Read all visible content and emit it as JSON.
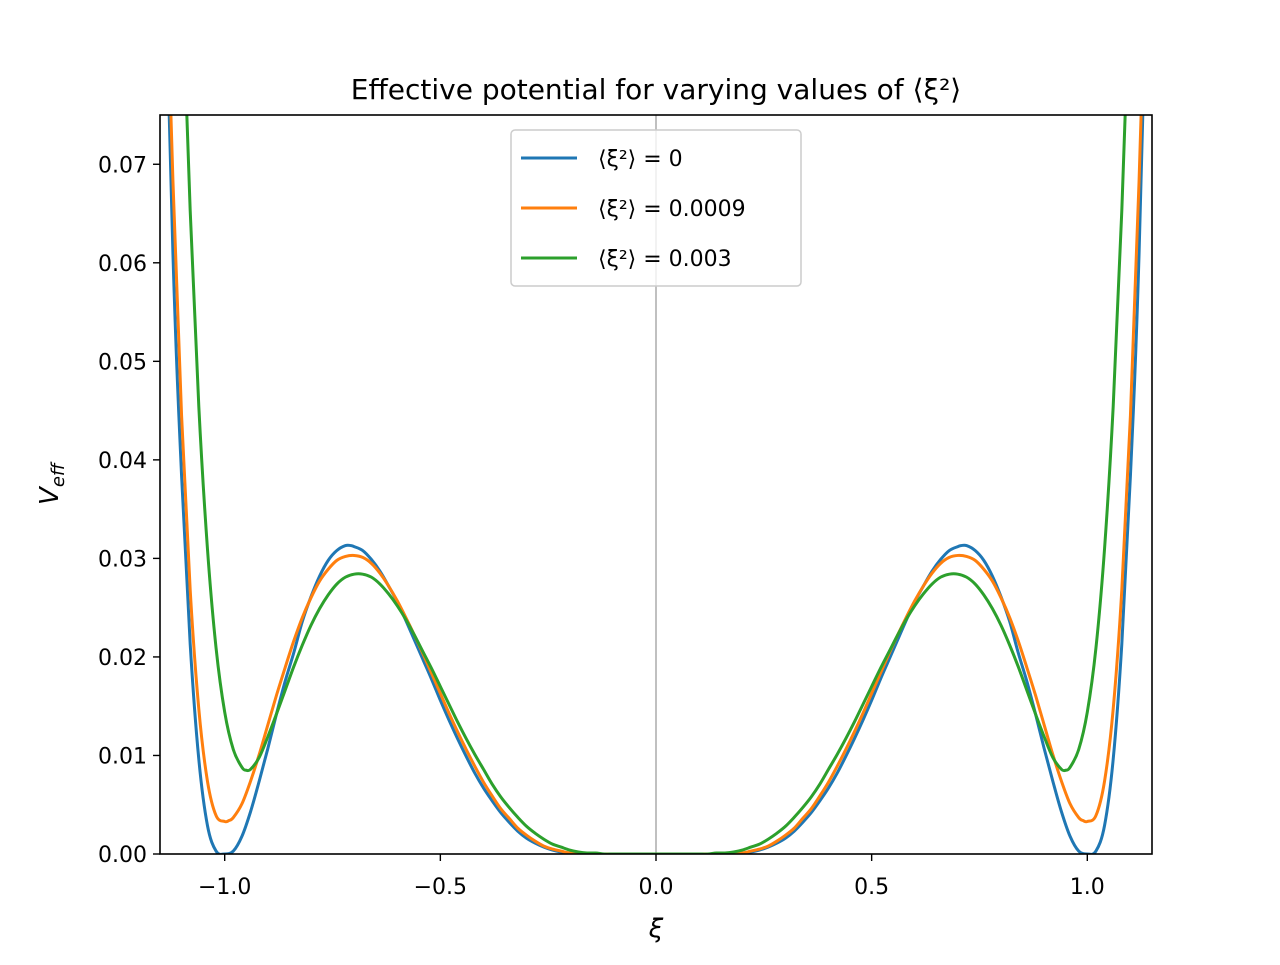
{
  "chart_data": {
    "type": "line",
    "title": "Effective potential for varying values of ⟨ξ²⟩",
    "xlabel": "ξ",
    "ylabel_main": "V",
    "ylabel_sub": "eff",
    "xlim": [
      -1.15,
      1.15
    ],
    "ylim": [
      0.0,
      0.075
    ],
    "xticks": [
      -1.0,
      -0.5,
      0.0,
      0.5,
      1.0
    ],
    "xtick_labels": [
      "−1.0",
      "−0.5",
      "0.0",
      "0.5",
      "1.0"
    ],
    "yticks": [
      0.0,
      0.01,
      0.02,
      0.03,
      0.04,
      0.05,
      0.06,
      0.07
    ],
    "ytick_labels": [
      "0.00",
      "0.01",
      "0.02",
      "0.03",
      "0.04",
      "0.05",
      "0.06",
      "0.07"
    ],
    "grid": false,
    "vertical_reference_line": 0.0,
    "legend_position": "upper center",
    "series": [
      {
        "name": "⟨ξ²⟩ = 0",
        "color": "#1f77b4",
        "x": [
          -1.15,
          -1.12,
          -1.1,
          -1.08,
          -1.06,
          -1.04,
          -1.02,
          -1.0,
          -0.98,
          -0.96,
          -0.94,
          -0.92,
          -0.9,
          -0.88,
          -0.86,
          -0.84,
          -0.82,
          -0.8,
          -0.78,
          -0.76,
          -0.74,
          -0.72,
          -0.707,
          -0.7,
          -0.68,
          -0.66,
          -0.64,
          -0.62,
          -0.6,
          -0.58,
          -0.56,
          -0.54,
          -0.52,
          -0.5,
          -0.48,
          -0.46,
          -0.44,
          -0.42,
          -0.4,
          -0.38,
          -0.36,
          -0.34,
          -0.32,
          -0.3,
          -0.28,
          -0.26,
          -0.24,
          -0.22,
          -0.2,
          -0.18,
          -0.16,
          -0.14,
          -0.12,
          -0.1,
          -0.08,
          -0.06,
          -0.04,
          -0.02,
          0.0,
          0.02,
          0.04,
          0.06,
          0.08,
          0.1,
          0.12,
          0.14,
          0.16,
          0.18,
          0.2,
          0.22,
          0.24,
          0.26,
          0.28,
          0.3,
          0.32,
          0.34,
          0.36,
          0.38,
          0.4,
          0.42,
          0.44,
          0.46,
          0.48,
          0.5,
          0.52,
          0.54,
          0.56,
          0.58,
          0.6,
          0.62,
          0.64,
          0.66,
          0.68,
          0.7,
          0.707,
          0.72,
          0.74,
          0.76,
          0.78,
          0.8,
          0.82,
          0.84,
          0.86,
          0.88,
          0.9,
          0.92,
          0.94,
          0.96,
          0.98,
          1.0,
          1.02,
          1.04,
          1.06,
          1.08,
          1.1,
          1.12,
          1.15
        ],
        "y": [
          0.1114,
          0.0609,
          0.0384,
          0.0213,
          0.0096,
          0.0029,
          0.0003,
          0.0,
          0.0003,
          0.0018,
          0.0043,
          0.0074,
          0.0107,
          0.0142,
          0.0175,
          0.0204,
          0.0236,
          0.0261,
          0.0282,
          0.0298,
          0.0308,
          0.0313,
          0.0313,
          0.0312,
          0.0308,
          0.0299,
          0.0287,
          0.0272,
          0.0256,
          0.0237,
          0.0217,
          0.0197,
          0.0177,
          0.0156,
          0.0136,
          0.0117,
          0.0099,
          0.0082,
          0.0067,
          0.0054,
          0.0042,
          0.0032,
          0.0023,
          0.0016,
          0.0011,
          0.0007,
          0.0004,
          0.0002,
          0.0001,
          0.0,
          0.0,
          0.0,
          0.0,
          0.0,
          0.0,
          0.0,
          0.0,
          0.0,
          0.0,
          0.0,
          0.0,
          0.0,
          0.0,
          0.0,
          0.0,
          0.0,
          0.0,
          0.0,
          0.0001,
          0.0002,
          0.0004,
          0.0007,
          0.0011,
          0.0016,
          0.0023,
          0.0032,
          0.0042,
          0.0054,
          0.0067,
          0.0082,
          0.0099,
          0.0117,
          0.0136,
          0.0156,
          0.0177,
          0.0197,
          0.0217,
          0.0237,
          0.0256,
          0.0272,
          0.0287,
          0.0299,
          0.0308,
          0.0312,
          0.0313,
          0.0313,
          0.0308,
          0.0298,
          0.0282,
          0.0261,
          0.0236,
          0.0204,
          0.0175,
          0.0142,
          0.0107,
          0.0074,
          0.0043,
          0.0018,
          0.0003,
          0.0,
          0.0003,
          0.0029,
          0.0096,
          0.0213,
          0.0384,
          0.0609,
          0.1114
        ]
      },
      {
        "name": "⟨ξ²⟩ = 0.0009",
        "color": "#ff7f0e",
        "x": [
          -1.14,
          -1.12,
          -1.1,
          -1.08,
          -1.06,
          -1.04,
          -1.02,
          -1.0,
          -0.99,
          -0.98,
          -0.96,
          -0.94,
          -0.92,
          -0.9,
          -0.88,
          -0.86,
          -0.84,
          -0.82,
          -0.8,
          -0.78,
          -0.76,
          -0.74,
          -0.72,
          -0.7,
          -0.68,
          -0.66,
          -0.64,
          -0.62,
          -0.6,
          -0.58,
          -0.56,
          -0.54,
          -0.52,
          -0.5,
          -0.48,
          -0.46,
          -0.44,
          -0.42,
          -0.4,
          -0.38,
          -0.36,
          -0.34,
          -0.32,
          -0.3,
          -0.28,
          -0.26,
          -0.24,
          -0.22,
          -0.2,
          -0.18,
          -0.16,
          -0.14,
          -0.12,
          -0.1,
          -0.08,
          -0.06,
          -0.04,
          -0.02,
          0.0,
          0.02,
          0.04,
          0.06,
          0.08,
          0.1,
          0.12,
          0.14,
          0.16,
          0.18,
          0.2,
          0.22,
          0.24,
          0.26,
          0.28,
          0.3,
          0.32,
          0.34,
          0.36,
          0.38,
          0.4,
          0.42,
          0.44,
          0.46,
          0.48,
          0.5,
          0.52,
          0.54,
          0.56,
          0.58,
          0.6,
          0.62,
          0.64,
          0.66,
          0.68,
          0.7,
          0.72,
          0.74,
          0.76,
          0.78,
          0.8,
          0.82,
          0.84,
          0.86,
          0.88,
          0.9,
          0.92,
          0.94,
          0.96,
          0.98,
          0.99,
          1.0,
          1.02,
          1.04,
          1.06,
          1.08,
          1.1,
          1.12,
          1.14
        ],
        "y": [
          0.0977,
          0.0683,
          0.0445,
          0.0268,
          0.0147,
          0.0074,
          0.0039,
          0.0033,
          0.0034,
          0.0037,
          0.0051,
          0.0074,
          0.0101,
          0.0131,
          0.0161,
          0.0189,
          0.0216,
          0.024,
          0.026,
          0.0277,
          0.0289,
          0.0298,
          0.0302,
          0.0303,
          0.0301,
          0.0295,
          0.0285,
          0.0272,
          0.0257,
          0.024,
          0.0222,
          0.0203,
          0.0183,
          0.0163,
          0.0143,
          0.0124,
          0.0106,
          0.0089,
          0.0073,
          0.0059,
          0.0046,
          0.0036,
          0.0026,
          0.0019,
          0.0013,
          0.0008,
          0.0005,
          0.0003,
          0.0001,
          0.0001,
          0.0,
          0.0,
          0.0,
          0.0,
          0.0,
          0.0,
          0.0,
          0.0,
          0.0,
          0.0,
          0.0,
          0.0,
          0.0,
          0.0,
          0.0,
          0.0,
          0.0,
          0.0001,
          0.0001,
          0.0003,
          0.0005,
          0.0008,
          0.0013,
          0.0019,
          0.0026,
          0.0036,
          0.0046,
          0.0059,
          0.0073,
          0.0089,
          0.0106,
          0.0124,
          0.0143,
          0.0163,
          0.0183,
          0.0203,
          0.0222,
          0.024,
          0.0257,
          0.0272,
          0.0285,
          0.0295,
          0.0301,
          0.0303,
          0.0302,
          0.0298,
          0.0289,
          0.0277,
          0.026,
          0.024,
          0.0216,
          0.0189,
          0.0161,
          0.0131,
          0.0101,
          0.0074,
          0.0051,
          0.0037,
          0.0034,
          0.0033,
          0.0039,
          0.0074,
          0.0147,
          0.0268,
          0.0445,
          0.0683,
          0.0977
        ]
      },
      {
        "name": "⟨ξ²⟩ = 0.003",
        "color": "#2ca02c",
        "x": [
          -1.1,
          -1.08,
          -1.06,
          -1.04,
          -1.02,
          -1.0,
          -0.98,
          -0.96,
          -0.95,
          -0.94,
          -0.92,
          -0.9,
          -0.88,
          -0.86,
          -0.84,
          -0.82,
          -0.8,
          -0.78,
          -0.76,
          -0.74,
          -0.72,
          -0.7,
          -0.68,
          -0.66,
          -0.64,
          -0.62,
          -0.6,
          -0.58,
          -0.56,
          -0.54,
          -0.52,
          -0.5,
          -0.48,
          -0.46,
          -0.44,
          -0.42,
          -0.4,
          -0.38,
          -0.36,
          -0.34,
          -0.32,
          -0.3,
          -0.28,
          -0.26,
          -0.24,
          -0.22,
          -0.2,
          -0.18,
          -0.16,
          -0.14,
          -0.12,
          -0.1,
          -0.08,
          -0.06,
          -0.04,
          -0.02,
          0.0,
          0.02,
          0.04,
          0.06,
          0.08,
          0.1,
          0.12,
          0.14,
          0.16,
          0.18,
          0.2,
          0.22,
          0.24,
          0.26,
          0.28,
          0.3,
          0.32,
          0.34,
          0.36,
          0.38,
          0.4,
          0.42,
          0.44,
          0.46,
          0.48,
          0.5,
          0.52,
          0.54,
          0.56,
          0.58,
          0.6,
          0.62,
          0.64,
          0.66,
          0.68,
          0.7,
          0.72,
          0.74,
          0.76,
          0.78,
          0.8,
          0.82,
          0.84,
          0.86,
          0.88,
          0.9,
          0.92,
          0.94,
          0.95,
          0.96,
          0.98,
          1.0,
          1.02,
          1.04,
          1.06,
          1.08,
          1.1
        ],
        "y": [
          0.0912,
          0.0653,
          0.0454,
          0.031,
          0.0209,
          0.0144,
          0.0106,
          0.0088,
          0.0085,
          0.0086,
          0.0098,
          0.0119,
          0.0142,
          0.0166,
          0.019,
          0.0212,
          0.0232,
          0.0249,
          0.0263,
          0.0274,
          0.0281,
          0.0284,
          0.0284,
          0.0281,
          0.0274,
          0.0264,
          0.0252,
          0.0238,
          0.0222,
          0.0205,
          0.0188,
          0.017,
          0.0152,
          0.0134,
          0.0117,
          0.0101,
          0.0086,
          0.0071,
          0.0058,
          0.0047,
          0.0037,
          0.0028,
          0.0021,
          0.0015,
          0.001,
          0.0007,
          0.0004,
          0.0002,
          0.0001,
          0.0001,
          0.0,
          0.0,
          0.0,
          0.0,
          0.0,
          0.0,
          0.0,
          0.0,
          0.0,
          0.0,
          0.0,
          0.0,
          0.0,
          0.0001,
          0.0001,
          0.0002,
          0.0004,
          0.0007,
          0.001,
          0.0015,
          0.0021,
          0.0028,
          0.0037,
          0.0047,
          0.0058,
          0.0071,
          0.0086,
          0.0101,
          0.0117,
          0.0134,
          0.0152,
          0.017,
          0.0188,
          0.0205,
          0.0222,
          0.0238,
          0.0252,
          0.0264,
          0.0274,
          0.0281,
          0.0284,
          0.0284,
          0.0281,
          0.0274,
          0.0263,
          0.0249,
          0.0232,
          0.0212,
          0.019,
          0.0166,
          0.0142,
          0.0119,
          0.0098,
          0.0086,
          0.0085,
          0.0088,
          0.0106,
          0.0144,
          0.0209,
          0.031,
          0.0454,
          0.0653,
          0.0912
        ]
      }
    ]
  }
}
